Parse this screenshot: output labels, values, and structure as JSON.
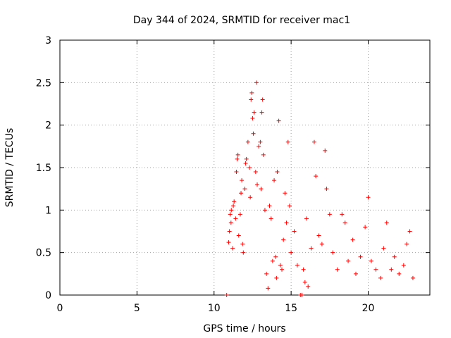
{
  "chart_data": {
    "type": "scatter",
    "title": "Day 344 of 2024, SRMTID for receiver mac1",
    "xlabel": "GPS time / hours",
    "ylabel": "SRMTID / TECUs",
    "xlim": [
      0,
      24
    ],
    "ylim": [
      0,
      3
    ],
    "xticks": [
      0,
      5,
      10,
      15,
      20
    ],
    "yticks": [
      0,
      0.5,
      1,
      1.5,
      2,
      2.5,
      3
    ],
    "ytick_labels": [
      "0",
      "0.5",
      "1",
      "1.5",
      "2",
      "2.5",
      "3"
    ],
    "grid": true,
    "marker": "+",
    "color": "#ff0000",
    "series": [
      {
        "name": "SRMTID",
        "points": [
          [
            10.82,
            0.0
          ],
          [
            10.95,
            0.62
          ],
          [
            11.0,
            0.75
          ],
          [
            11.05,
            0.95
          ],
          [
            11.1,
            0.85
          ],
          [
            11.12,
            1.0
          ],
          [
            11.2,
            0.55
          ],
          [
            11.25,
            1.05
          ],
          [
            11.3,
            1.1
          ],
          [
            11.4,
            0.9
          ],
          [
            11.45,
            1.45
          ],
          [
            11.5,
            1.6
          ],
          [
            11.55,
            1.65
          ],
          [
            11.6,
            0.7
          ],
          [
            11.7,
            0.95
          ],
          [
            11.75,
            1.2
          ],
          [
            11.8,
            1.35
          ],
          [
            11.85,
            0.6
          ],
          [
            11.9,
            0.5
          ],
          [
            12.0,
            1.25
          ],
          [
            12.05,
            1.55
          ],
          [
            12.1,
            1.6
          ],
          [
            12.2,
            1.8
          ],
          [
            12.3,
            1.5
          ],
          [
            12.35,
            1.15
          ],
          [
            12.4,
            2.3
          ],
          [
            12.45,
            2.38
          ],
          [
            12.5,
            2.08
          ],
          [
            12.55,
            1.9
          ],
          [
            12.6,
            2.15
          ],
          [
            12.7,
            1.45
          ],
          [
            12.75,
            2.5
          ],
          [
            12.8,
            1.3
          ],
          [
            12.9,
            1.75
          ],
          [
            13.0,
            1.8
          ],
          [
            13.05,
            1.25
          ],
          [
            13.1,
            2.15
          ],
          [
            13.15,
            2.3
          ],
          [
            13.2,
            1.65
          ],
          [
            13.3,
            1.0
          ],
          [
            13.4,
            0.25
          ],
          [
            13.5,
            0.08
          ],
          [
            13.6,
            1.05
          ],
          [
            13.7,
            0.9
          ],
          [
            13.8,
            0.4
          ],
          [
            13.9,
            1.35
          ],
          [
            14.0,
            0.45
          ],
          [
            14.05,
            0.2
          ],
          [
            14.1,
            1.45
          ],
          [
            14.2,
            2.05
          ],
          [
            14.3,
            0.35
          ],
          [
            14.4,
            0.3
          ],
          [
            14.5,
            0.65
          ],
          [
            14.6,
            1.2
          ],
          [
            14.7,
            0.85
          ],
          [
            14.8,
            1.8
          ],
          [
            14.9,
            1.05
          ],
          [
            15.0,
            0.5
          ],
          [
            15.2,
            0.75
          ],
          [
            15.4,
            0.35
          ],
          [
            15.6,
            0.0
          ],
          [
            15.7,
            0.0
          ],
          [
            15.8,
            0.3
          ],
          [
            15.9,
            0.15
          ],
          [
            16.0,
            0.9
          ],
          [
            16.1,
            0.1
          ],
          [
            16.3,
            0.55
          ],
          [
            16.5,
            1.8
          ],
          [
            16.6,
            1.4
          ],
          [
            16.8,
            0.7
          ],
          [
            17.0,
            0.6
          ],
          [
            17.2,
            1.7
          ],
          [
            17.3,
            1.25
          ],
          [
            17.5,
            0.95
          ],
          [
            17.7,
            0.5
          ],
          [
            18.0,
            0.3
          ],
          [
            18.3,
            0.95
          ],
          [
            18.5,
            0.85
          ],
          [
            18.7,
            0.4
          ],
          [
            19.0,
            0.65
          ],
          [
            19.2,
            0.25
          ],
          [
            19.5,
            0.45
          ],
          [
            19.8,
            0.8
          ],
          [
            20.0,
            1.15
          ],
          [
            20.2,
            0.4
          ],
          [
            20.5,
            0.3
          ],
          [
            20.8,
            0.2
          ],
          [
            21.0,
            0.55
          ],
          [
            21.2,
            0.85
          ],
          [
            21.5,
            0.3
          ],
          [
            21.7,
            0.45
          ],
          [
            22.0,
            0.25
          ],
          [
            22.3,
            0.35
          ],
          [
            22.5,
            0.6
          ],
          [
            22.7,
            0.75
          ],
          [
            22.9,
            0.2
          ]
        ]
      }
    ]
  }
}
